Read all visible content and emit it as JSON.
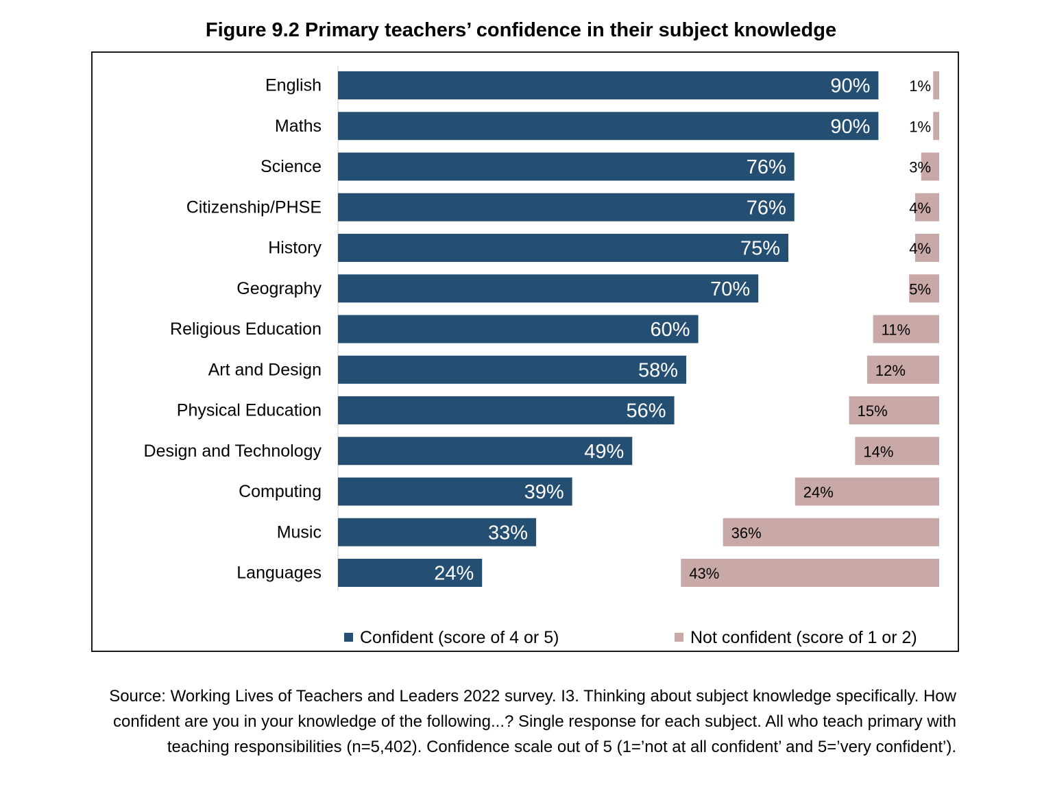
{
  "colors": {
    "confident": "#254f72",
    "not_confident": "#c9a8a8"
  },
  "chart_data": {
    "type": "bar",
    "orientation": "horizontal",
    "title": "Figure 9.2 Primary teachers’ confidence in their subject knowledge",
    "categories": [
      "English",
      "Maths",
      "Science",
      "Citizenship/PHSE",
      "History",
      "Geography",
      "Religious Education",
      "Art and Design",
      "Physical Education",
      "Design and Technology",
      "Computing",
      "Music",
      "Languages"
    ],
    "series": [
      {
        "name": "Confident (score of 4 or 5)",
        "values": [
          90,
          90,
          76,
          76,
          75,
          70,
          60,
          58,
          56,
          49,
          39,
          33,
          24
        ]
      },
      {
        "name": "Not confident (score of 1 or 2)",
        "values": [
          1,
          1,
          3,
          4,
          4,
          5,
          11,
          12,
          15,
          14,
          24,
          36,
          43
        ]
      }
    ],
    "value_suffix": "%",
    "legend_position": "bottom",
    "grid": false
  },
  "source": "Source: Working Lives of Teachers and Leaders 2022 survey. I3. Thinking about subject knowledge specifically. How confident are you in your knowledge of the following...? Single response for each subject. All who teach primary with teaching responsibilities (n=5,402). Confidence scale out of 5 (1=’not at all confident’ and 5=’very confident’)."
}
